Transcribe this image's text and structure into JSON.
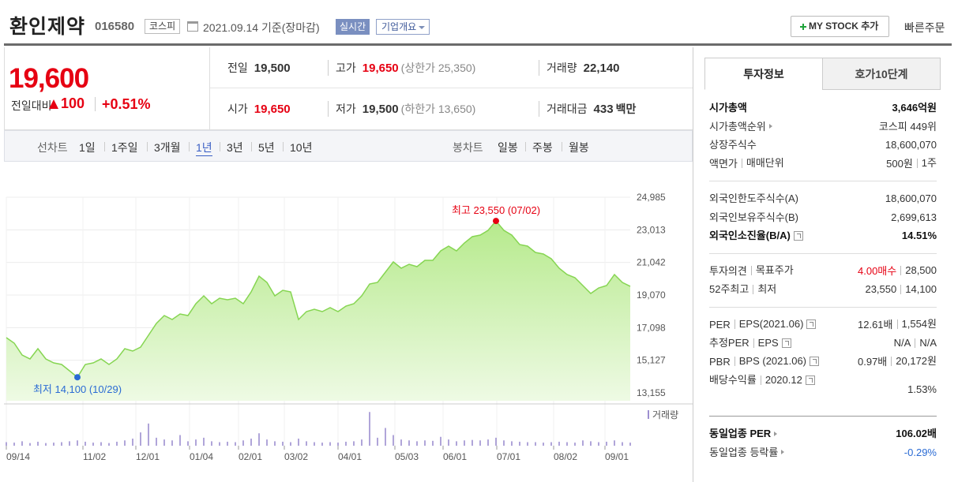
{
  "header": {
    "name": "환인제약",
    "code": "016580",
    "market": "코스피",
    "date": "2021.09.14 기준(장마감)",
    "realtime": "실시간",
    "company_info": "기업개요",
    "mystock_button": "MY STOCK 추가",
    "quick_order": "빠른주문"
  },
  "price": {
    "current": "19,600",
    "change_label": "전일대비",
    "change": "100",
    "change_rate": "+0.51%"
  },
  "quotes": [
    [
      {
        "label": "전일",
        "value": "19,500"
      },
      {
        "label": "고가",
        "value": "19,650",
        "note": "(상한가 25,350)",
        "highlight": true
      },
      {
        "label": "거래량",
        "value": "22,140"
      }
    ],
    [
      {
        "label": "시가",
        "value": "19,650",
        "highlight": true
      },
      {
        "label": "저가",
        "value": "19,500",
        "note": "(하한가 13,650)"
      },
      {
        "label": "거래대금",
        "value": "433",
        "note": "백만"
      }
    ]
  ],
  "chart_tabs": {
    "line_label": "선차트",
    "line_periods": [
      "1일",
      "1주일",
      "3개월",
      "1년",
      "3년",
      "5년",
      "10년"
    ],
    "selected_period": 3,
    "candle_label": "봉차트",
    "candle_periods": [
      "일봉",
      "주봉",
      "월봉"
    ]
  },
  "chart_data": {
    "type": "area",
    "color": "#86d552",
    "values": [
      16494,
      16160,
      15445,
      15206,
      15826,
      15206,
      14968,
      14872,
      14491,
      14100,
      14872,
      14968,
      15206,
      14872,
      15206,
      15826,
      15683,
      15922,
      16637,
      17353,
      17830,
      17592,
      17926,
      17830,
      18545,
      19022,
      18545,
      18879,
      18784,
      18879,
      18545,
      19261,
      20215,
      19833,
      19022,
      19356,
      19261,
      17592,
      18069,
      18212,
      18069,
      18307,
      18069,
      18403,
      18545,
      19022,
      19738,
      19833,
      20453,
      21075,
      20692,
      20931,
      20787,
      21169,
      21169,
      21741,
      22027,
      21741,
      22218,
      22600,
      22695,
      22981,
      23550,
      22981,
      22695,
      22123,
      22027,
      21646,
      21550,
      21264,
      20692,
      20310,
      20120,
      19643,
      19165,
      19499,
      19643,
      20310,
      19833,
      19600
    ],
    "xlim": [
      0,
      79
    ],
    "xticks": [
      {
        "value": 0,
        "label": "09/14"
      },
      {
        "value": 9.7,
        "label": "11/02"
      },
      {
        "value": 16.4,
        "label": "12/01"
      },
      {
        "value": 23.2,
        "label": "01/04"
      },
      {
        "value": 29.4,
        "label": "02/01"
      },
      {
        "value": 35.2,
        "label": "03/02"
      },
      {
        "value": 42,
        "label": "04/01"
      },
      {
        "value": 49.2,
        "label": "05/03"
      },
      {
        "value": 55.3,
        "label": "06/01"
      },
      {
        "value": 62.1,
        "label": "07/01"
      },
      {
        "value": 69.3,
        "label": "08/02"
      },
      {
        "value": 75.8,
        "label": "09/01"
      }
    ],
    "ylim": [
      13155,
      24985
    ],
    "yticks": [
      {
        "value": 24985,
        "label": "24,985"
      },
      {
        "value": 23013,
        "label": "23,013"
      },
      {
        "value": 21042,
        "label": "21,042"
      },
      {
        "value": 19070,
        "label": "19,070"
      },
      {
        "value": 17098,
        "label": "17,098"
      },
      {
        "value": 15127,
        "label": "15,127"
      },
      {
        "value": 13155,
        "label": "13,155"
      }
    ],
    "grid": true,
    "annotations": [
      {
        "text": "최고 23,550 (07/02)",
        "x": 62,
        "y": 23550,
        "color": "#e60012",
        "position": "above"
      },
      {
        "text": "최저 14,100 (10/29)",
        "x": 9,
        "y": 14100,
        "color": "#2a6bd4",
        "position": "below"
      }
    ],
    "volume": {
      "label": "거래량",
      "color": "#9d8fd0",
      "ylim": [
        0,
        400000
      ],
      "values": [
        40000,
        35000,
        50000,
        30000,
        45000,
        30000,
        35000,
        40000,
        50000,
        60000,
        45000,
        35000,
        40000,
        30000,
        45000,
        60000,
        80000,
        150000,
        250000,
        90000,
        70000,
        60000,
        120000,
        50000,
        70000,
        90000,
        50000,
        40000,
        45000,
        40000,
        60000,
        80000,
        140000,
        70000,
        50000,
        45000,
        40000,
        80000,
        50000,
        40000,
        35000,
        40000,
        35000,
        45000,
        50000,
        70000,
        380000,
        90000,
        200000,
        120000,
        70000,
        60000,
        50000,
        60000,
        55000,
        100000,
        70000,
        50000,
        60000,
        65000,
        60000,
        70000,
        90000,
        60000,
        50000,
        45000,
        40000,
        40000,
        35000,
        40000,
        45000,
        40000,
        35000,
        60000,
        50000,
        40000,
        45000,
        60000,
        40000,
        35000
      ]
    }
  },
  "invest_tabs": [
    "투자정보",
    "호가10단계"
  ],
  "invest_groups": [
    [
      {
        "label": [
          "시가총액"
        ],
        "value": [
          "3,646억원"
        ],
        "bold": true
      },
      {
        "label": [
          "시가총액순위"
        ],
        "arrow": true,
        "value": [
          "코스피 449위"
        ]
      },
      {
        "label": [
          "상장주식수"
        ],
        "value": [
          "18,600,070"
        ]
      },
      {
        "label": [
          "액면가",
          "매매단위"
        ],
        "value": [
          "500원",
          "1주"
        ]
      }
    ],
    [
      {
        "label": [
          "외국인한도주식수(A)"
        ],
        "value": [
          "18,600,070"
        ]
      },
      {
        "label": [
          "외국인보유주식수(B)"
        ],
        "value": [
          "2,699,613"
        ]
      },
      {
        "label": [
          "외국인소진율(B/A)"
        ],
        "help": true,
        "value": [
          "14.51%"
        ],
        "bold": true
      }
    ],
    [
      {
        "label": [
          "투자의견",
          "목표주가"
        ],
        "value": [
          "4.00매수",
          "28,500"
        ],
        "value_colors": [
          "#e60012",
          null
        ]
      },
      {
        "label": [
          "52주최고",
          "최저"
        ],
        "value": [
          "23,550",
          "14,100"
        ]
      }
    ],
    [
      {
        "label": [
          "PER",
          "EPS(2021.06)"
        ],
        "help": true,
        "value": [
          "12.61배",
          "1,554원"
        ]
      },
      {
        "label": [
          "추정PER",
          "EPS"
        ],
        "help": true,
        "value": [
          "N/A",
          "N/A"
        ]
      },
      {
        "label": [
          "PBR",
          "BPS (2021.06)"
        ],
        "help": true,
        "value": [
          "0.97배",
          "20,172원"
        ]
      },
      {
        "label": [
          "배당수익률",
          "2020.12"
        ],
        "help": true,
        "wrap": true,
        "value": [
          "1.53%"
        ]
      }
    ],
    [
      {
        "label": [
          "동일업종 PER"
        ],
        "arrow": true,
        "value": [
          "106.02배"
        ],
        "bold": true
      },
      {
        "label": [
          "동일업종 등락률"
        ],
        "arrow": true,
        "value": [
          "-0.29%"
        ],
        "value_colors": [
          "#2a6bd4"
        ]
      }
    ]
  ]
}
